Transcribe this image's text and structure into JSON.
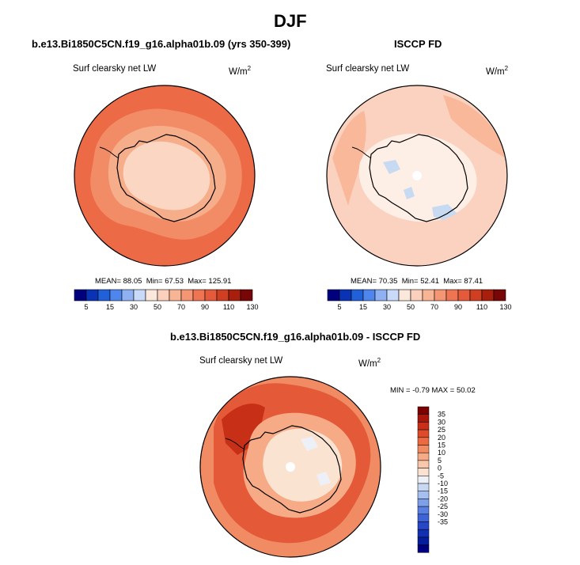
{
  "figure": {
    "title": "DJF"
  },
  "panels": [
    {
      "title": "b.e13.Bi1850C5CN.f19_g16.alpha01b.09 (yrs 350-399)",
      "variable": "Surf clearsky net LW",
      "units_base": "W/m",
      "units_exp": "2",
      "stats": {
        "mean_label": "MEAN=",
        "mean": "88.05",
        "min_label": "Min=",
        "min": "67.53",
        "max_label": "Max=",
        "max": "125.91"
      }
    },
    {
      "title": "ISCCP FD",
      "variable": "Surf clearsky net LW",
      "units_base": "W/m",
      "units_exp": "2",
      "stats": {
        "mean_label": "MEAN=",
        "mean": "70.35",
        "min_label": "Min=",
        "min": "52.41",
        "max_label": "Max=",
        "max": "87.41"
      }
    },
    {
      "title": "b.e13.Bi1850C5CN.f19_g16.alpha01b.09 - ISCCP FD",
      "variable": "Surf clearsky net LW",
      "units_base": "W/m",
      "units_exp": "2",
      "stats": {
        "min_label": "MIN =",
        "min": "-0.79",
        "max_label": "MAX =",
        "max": "50.02"
      }
    }
  ],
  "colorbars": {
    "absolute": {
      "orientation": "horizontal",
      "colors": [
        "#00007f",
        "#0a32b4",
        "#2060d8",
        "#4e86ee",
        "#8fb1f2",
        "#c8daf8",
        "#fbe8dd",
        "#fbd0bc",
        "#f8b596",
        "#f49574",
        "#ee7452",
        "#e45a3b",
        "#cf3f22",
        "#a8200d",
        "#780606"
      ],
      "labels": [
        "5",
        "15",
        "30",
        "50",
        "70",
        "90",
        "110",
        "130"
      ]
    },
    "difference": {
      "orientation": "vertical",
      "colors": [
        "#7c0000",
        "#a8160c",
        "#c92e18",
        "#de4b2a",
        "#ec6a42",
        "#f28a62",
        "#f6ab86",
        "#f9c7aa",
        "#fbe2d0",
        "#eef0f7",
        "#c8d8f2",
        "#a5bff0",
        "#7e9fea",
        "#5a7fe2",
        "#3e63d8",
        "#2647c6",
        "#1230b2",
        "#041e9c",
        "#00007f"
      ],
      "labels": [
        "35",
        "30",
        "25",
        "20",
        "15",
        "10",
        "5",
        "0",
        "-5",
        "-10",
        "-15",
        "-20",
        "-25",
        "-30",
        "-35"
      ]
    }
  },
  "map": {
    "projection": "south polar stereographic",
    "region": "Antarctica"
  }
}
